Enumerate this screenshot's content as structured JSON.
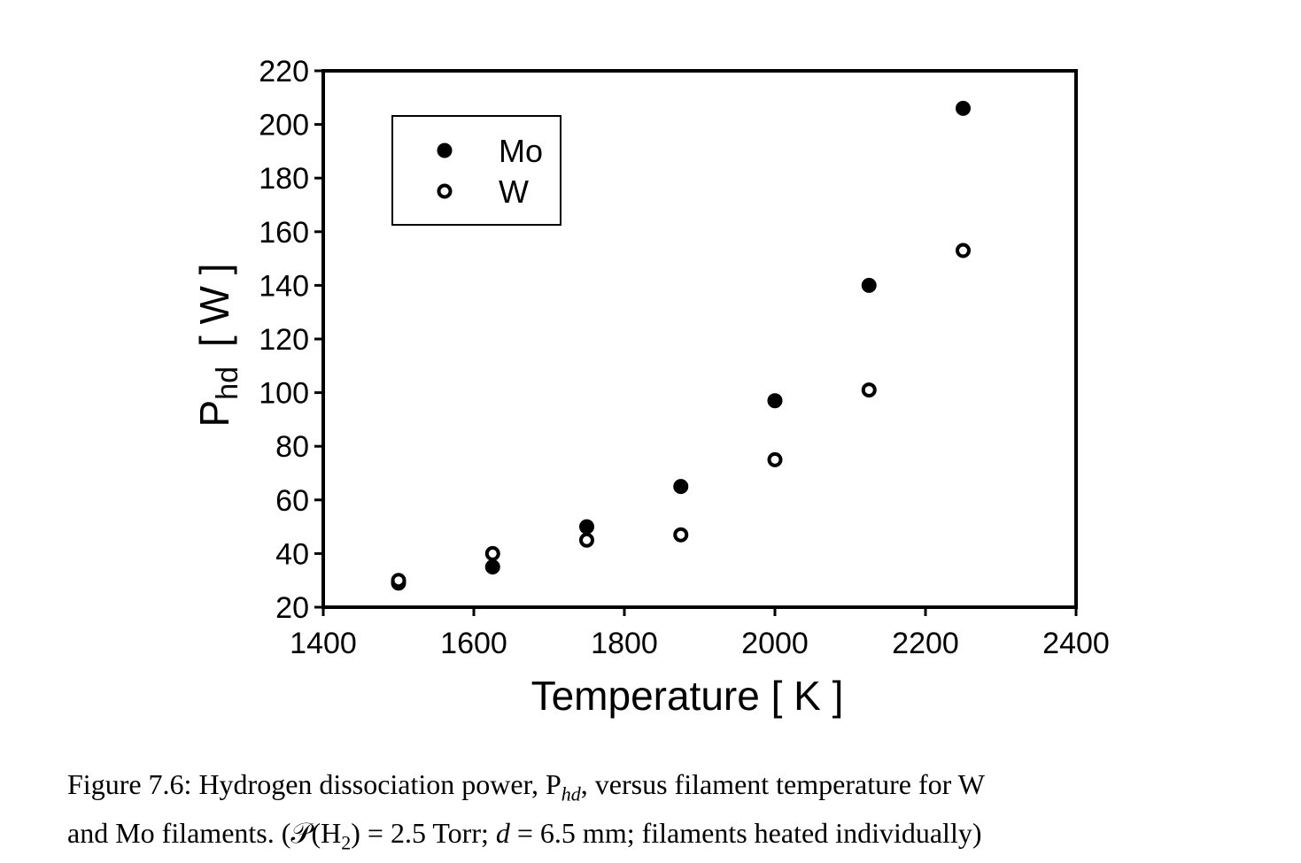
{
  "chart_data": {
    "type": "scatter",
    "xlabel": "Temperature [ K ]",
    "ylabel_main": "P",
    "ylabel_sub": "hd",
    "ylabel_units": "[ W ]",
    "xlim": [
      1400,
      2400
    ],
    "ylim": [
      20,
      220
    ],
    "xticks": [
      1400,
      1600,
      1800,
      2000,
      2200,
      2400
    ],
    "yticks": [
      20,
      40,
      60,
      80,
      100,
      120,
      140,
      160,
      180,
      200,
      220
    ],
    "grid": false,
    "legend_position": "top-left",
    "series": [
      {
        "name": "Mo",
        "marker": "filled-circle",
        "color": "#000000",
        "points": [
          {
            "x": 1500,
            "y": 29
          },
          {
            "x": 1625,
            "y": 35
          },
          {
            "x": 1750,
            "y": 50
          },
          {
            "x": 1875,
            "y": 65
          },
          {
            "x": 2000,
            "y": 97
          },
          {
            "x": 2125,
            "y": 140
          },
          {
            "x": 2250,
            "y": 206
          }
        ]
      },
      {
        "name": "W",
        "marker": "open-circle",
        "color": "#000000",
        "points": [
          {
            "x": 1500,
            "y": 30
          },
          {
            "x": 1625,
            "y": 40
          },
          {
            "x": 1750,
            "y": 45
          },
          {
            "x": 1875,
            "y": 47
          },
          {
            "x": 2000,
            "y": 75
          },
          {
            "x": 2125,
            "y": 101
          },
          {
            "x": 2250,
            "y": 153
          }
        ]
      }
    ]
  },
  "caption": {
    "line1": "Figure 7.6: Hydrogen dissociation power, P",
    "line1_sub": "hd",
    "line1_rest": ", versus filament temperature for W",
    "line2_a": "and Mo filaments. (",
    "line2_p": "𝒫",
    "line2_b": "(H",
    "line2_sub": "2",
    "line2_c": ") = 2.5 Torr; ",
    "line2_d": "d",
    "line2_e": " = 6.5 mm; filaments heated individually)"
  }
}
